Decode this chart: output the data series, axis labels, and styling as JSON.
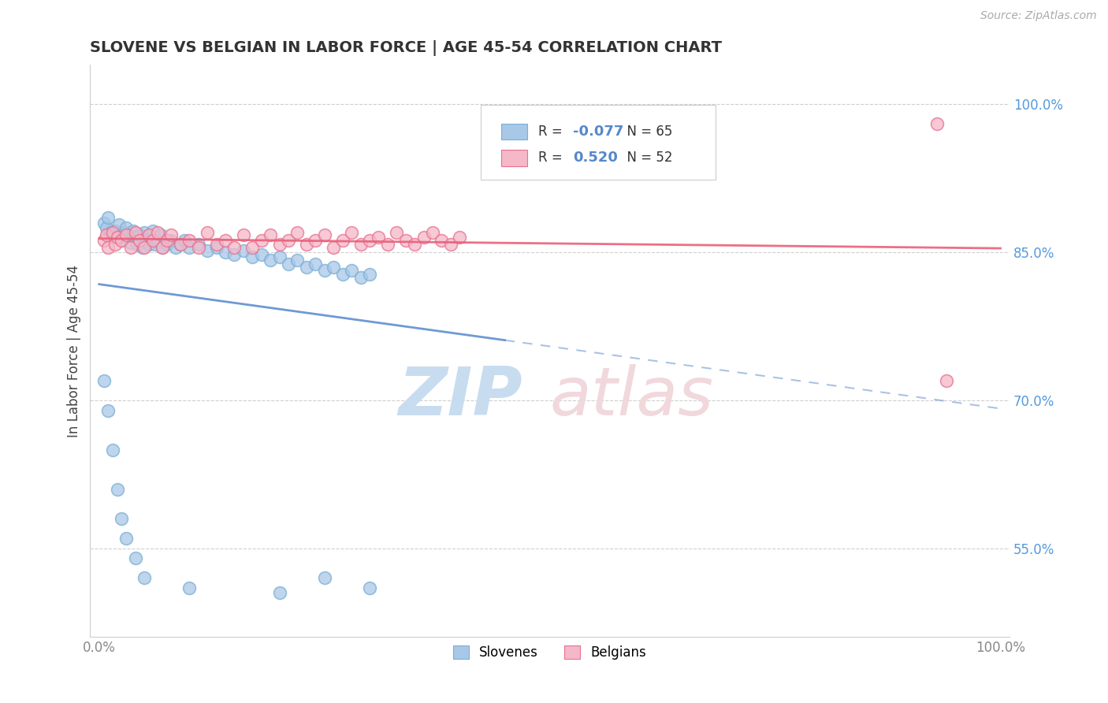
{
  "title": "SLOVENE VS BELGIAN IN LABOR FORCE | AGE 45-54 CORRELATION CHART",
  "source": "Source: ZipAtlas.com",
  "ylabel": "In Labor Force | Age 45-54",
  "xlim": [
    -0.01,
    1.01
  ],
  "ylim": [
    0.46,
    1.04
  ],
  "x_ticks": [
    0.0,
    1.0
  ],
  "x_tick_labels": [
    "0.0%",
    "100.0%"
  ],
  "y_ticks": [
    0.55,
    0.7,
    0.85,
    1.0
  ],
  "y_tick_labels": [
    "55.0%",
    "70.0%",
    "85.0%",
    "100.0%"
  ],
  "r_slovene": -0.077,
  "n_slovene": 65,
  "r_belgian": 0.52,
  "n_belgian": 52,
  "slovene_fill": "#A8C8E8",
  "slovene_edge": "#7AAFD4",
  "belgian_fill": "#F4B8C8",
  "belgian_edge": "#E87090",
  "slovene_line_color": "#5588CC",
  "belgian_line_color": "#E8607A",
  "background_color": "#FFFFFF",
  "grid_color": "#BBBBBB",
  "title_color": "#333333",
  "ytick_color": "#5599DD",
  "xtick_color": "#888888",
  "watermark_zip_color": "#C8DCF0",
  "watermark_atlas_color": "#F0D8DC",
  "slovene_x": [
    0.005,
    0.008,
    0.01,
    0.012,
    0.015,
    0.018,
    0.02,
    0.022,
    0.025,
    0.028,
    0.03,
    0.032,
    0.035,
    0.038,
    0.04,
    0.042,
    0.045,
    0.048,
    0.05,
    0.052,
    0.055,
    0.058,
    0.06,
    0.062,
    0.065,
    0.068,
    0.07,
    0.075,
    0.08,
    0.085,
    0.09,
    0.095,
    0.1,
    0.11,
    0.12,
    0.13,
    0.14,
    0.15,
    0.16,
    0.17,
    0.18,
    0.19,
    0.2,
    0.21,
    0.22,
    0.23,
    0.24,
    0.25,
    0.26,
    0.27,
    0.28,
    0.29,
    0.3,
    0.005,
    0.01,
    0.015,
    0.02,
    0.025,
    0.03,
    0.04,
    0.05,
    0.1,
    0.2,
    0.25,
    0.3
  ],
  "slovene_y": [
    0.88,
    0.875,
    0.885,
    0.87,
    0.868,
    0.872,
    0.865,
    0.878,
    0.862,
    0.87,
    0.875,
    0.868,
    0.86,
    0.872,
    0.865,
    0.858,
    0.868,
    0.855,
    0.87,
    0.862,
    0.858,
    0.865,
    0.872,
    0.858,
    0.862,
    0.868,
    0.855,
    0.858,
    0.862,
    0.855,
    0.858,
    0.862,
    0.855,
    0.858,
    0.852,
    0.855,
    0.85,
    0.848,
    0.852,
    0.845,
    0.848,
    0.842,
    0.845,
    0.838,
    0.842,
    0.835,
    0.838,
    0.832,
    0.835,
    0.828,
    0.832,
    0.825,
    0.828,
    0.72,
    0.69,
    0.65,
    0.61,
    0.58,
    0.56,
    0.54,
    0.52,
    0.51,
    0.505,
    0.52,
    0.51
  ],
  "belgian_x": [
    0.005,
    0.008,
    0.01,
    0.015,
    0.018,
    0.02,
    0.025,
    0.03,
    0.035,
    0.04,
    0.045,
    0.05,
    0.055,
    0.06,
    0.065,
    0.07,
    0.075,
    0.08,
    0.09,
    0.1,
    0.11,
    0.12,
    0.13,
    0.14,
    0.15,
    0.16,
    0.17,
    0.18,
    0.19,
    0.2,
    0.21,
    0.22,
    0.23,
    0.24,
    0.25,
    0.26,
    0.27,
    0.28,
    0.29,
    0.3,
    0.31,
    0.32,
    0.33,
    0.34,
    0.35,
    0.36,
    0.37,
    0.38,
    0.39,
    0.4,
    0.93,
    0.94
  ],
  "belgian_y": [
    0.862,
    0.868,
    0.855,
    0.87,
    0.858,
    0.865,
    0.862,
    0.868,
    0.855,
    0.87,
    0.862,
    0.855,
    0.868,
    0.862,
    0.87,
    0.855,
    0.862,
    0.868,
    0.858,
    0.862,
    0.855,
    0.87,
    0.858,
    0.862,
    0.855,
    0.868,
    0.855,
    0.862,
    0.868,
    0.858,
    0.862,
    0.87,
    0.858,
    0.862,
    0.868,
    0.855,
    0.862,
    0.87,
    0.858,
    0.862,
    0.865,
    0.858,
    0.87,
    0.862,
    0.858,
    0.865,
    0.87,
    0.862,
    0.858,
    0.865,
    0.98,
    0.72
  ]
}
